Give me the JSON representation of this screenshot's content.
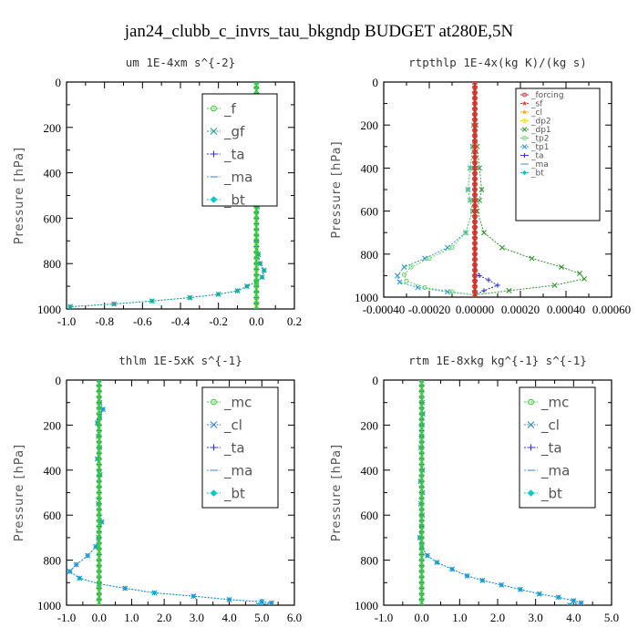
{
  "figure": {
    "title": "jan24_clubb_c_invrs_tau_bkgndp  BUDGET at280E,5N"
  },
  "chart_data": [
    {
      "type": "line",
      "title": "um  1E-4xm s^{-2}",
      "ylabel": "Pressure [hPa]",
      "xlim": [
        -1.0,
        0.2
      ],
      "ylim": [
        1000,
        0
      ],
      "xticks": [
        "-1.0",
        "-0.8",
        "-0.6",
        "-0.4",
        "-0.2",
        "0.0",
        "0.2"
      ],
      "xtick_values": [
        -1.0,
        -0.8,
        -0.6,
        -0.4,
        -0.2,
        0.0,
        0.2
      ],
      "yticks": [
        "0",
        "200",
        "400",
        "600",
        "800",
        "1000"
      ],
      "ytick_values": [
        0,
        200,
        400,
        600,
        800,
        1000
      ],
      "legend": "top-right",
      "legend_size": "large",
      "series": [
        {
          "name": "_f",
          "color": "#33cc33",
          "marker": "circle",
          "x": [
            0.0,
            0.0,
            0.0,
            0.0,
            0.0,
            0.0,
            0.0,
            0.0,
            0.0,
            0.0,
            0.0
          ],
          "y": [
            0,
            100,
            200,
            300,
            400,
            500,
            600,
            700,
            800,
            900,
            1000
          ]
        },
        {
          "name": "_gf",
          "color": "#2a9d8f",
          "marker": "x",
          "x": [
            0.0,
            0.005,
            0.03,
            0.01,
            0.005,
            0.01,
            0.005,
            0.0,
            0.01,
            0.02,
            0.04,
            0.03,
            0.0,
            -0.05,
            -0.1,
            -0.2,
            -0.35,
            -0.55,
            -0.75,
            -0.98
          ],
          "y": [
            0,
            100,
            130,
            160,
            250,
            400,
            550,
            700,
            760,
            800,
            830,
            860,
            880,
            900,
            920,
            935,
            950,
            965,
            978,
            990
          ]
        },
        {
          "name": "_ta",
          "color": "#3333cc",
          "marker": "plus",
          "x": [
            0.0,
            0.0,
            0.0,
            0.0,
            0.0,
            0.0,
            0.0
          ],
          "y": [
            0,
            200,
            400,
            600,
            800,
            900,
            1000
          ]
        },
        {
          "name": "_ma",
          "color": "#6699cc",
          "marker": "dash",
          "x": [
            0.0,
            0.0,
            0.0,
            0.0,
            0.0,
            0.0,
            0.0
          ],
          "y": [
            0,
            200,
            400,
            600,
            800,
            900,
            1000
          ]
        },
        {
          "name": "_bt",
          "color": "#00cccc",
          "marker": "diamond",
          "x": [
            0.0,
            0.005,
            0.03,
            0.01,
            0.005,
            0.01,
            0.005,
            0.0,
            0.01,
            0.02,
            0.04,
            0.03,
            0.0,
            -0.05,
            -0.1,
            -0.2,
            -0.35,
            -0.55,
            -0.75,
            -0.98
          ],
          "y": [
            0,
            100,
            130,
            160,
            250,
            400,
            550,
            700,
            760,
            800,
            830,
            860,
            880,
            900,
            920,
            935,
            950,
            965,
            978,
            990
          ]
        }
      ]
    },
    {
      "type": "line",
      "title": "rtpthlp  1E-4x(kg K)/(kg s)",
      "ylabel": "Pressure [hPa]",
      "xlim": [
        -0.0004,
        0.0006
      ],
      "ylim": [
        1000,
        0
      ],
      "xticks": [
        "-0.00040",
        "-0.00020",
        "0.00000",
        "0.00020",
        "0.00040",
        "0.00060"
      ],
      "xtick_values": [
        -0.0004,
        -0.0002,
        0.0,
        0.0002,
        0.0004,
        0.0006
      ],
      "yticks": [
        "0",
        "200",
        "400",
        "600",
        "800",
        "1000"
      ],
      "ytick_values": [
        0,
        200,
        400,
        600,
        800,
        1000
      ],
      "legend": "top-right",
      "legend_size": "small",
      "series": [
        {
          "name": "_forcing",
          "color": "#cc3333",
          "marker": "circle",
          "x": [
            0.0,
            0.0,
            0.0,
            0.0,
            0.0,
            0.0,
            0.0,
            0.0,
            0.0,
            0.0,
            0.0
          ],
          "y": [
            0,
            100,
            200,
            300,
            400,
            500,
            600,
            700,
            800,
            900,
            1000
          ]
        },
        {
          "name": "_sf",
          "color": "#ff3333",
          "marker": "star",
          "x": [
            0.0,
            0.0,
            0.0,
            0.0,
            0.0,
            0.0,
            0.0,
            0.0,
            0.0,
            0.0,
            0.0
          ],
          "y": [
            0,
            100,
            200,
            300,
            400,
            500,
            600,
            700,
            800,
            900,
            1000
          ]
        },
        {
          "name": "_cl",
          "color": "#ffaa00",
          "marker": "star",
          "x": [
            0.0,
            0.0,
            0.0,
            0.0,
            0.0,
            0.0,
            0.0
          ],
          "y": [
            0,
            200,
            400,
            600,
            800,
            900,
            1000
          ]
        },
        {
          "name": "_dp2",
          "color": "#ffcc33",
          "marker": "circle",
          "x": [
            0.0,
            0.0,
            0.0,
            0.0,
            0.0,
            0.0,
            0.0
          ],
          "y": [
            0,
            200,
            400,
            600,
            800,
            900,
            1000
          ]
        },
        {
          "name": "_dp1",
          "color": "#339933",
          "marker": "x",
          "x": [
            0.0,
            5e-06,
            1e-05,
            2e-05,
            3e-05,
            2e-05,
            1e-05,
            4e-05,
            0.00012,
            0.00025,
            0.00038,
            0.00046,
            0.00048,
            0.00035,
            0.00015,
            0.0
          ],
          "y": [
            0,
            200,
            300,
            400,
            500,
            550,
            600,
            700,
            770,
            820,
            860,
            890,
            915,
            945,
            970,
            990
          ]
        },
        {
          "name": "_tp2",
          "color": "#66dd66",
          "marker": "circle",
          "x": [
            0.0,
            -5e-06,
            -1e-05,
            -2e-05,
            -3e-05,
            -2e-05,
            -1e-05,
            -4e-05,
            -0.0001,
            -0.0002,
            -0.00028,
            -0.00031,
            -0.0003,
            -0.00022,
            -0.0001,
            0.0
          ],
          "y": [
            0,
            200,
            300,
            400,
            500,
            550,
            600,
            700,
            770,
            820,
            860,
            895,
            925,
            955,
            975,
            990
          ]
        },
        {
          "name": "_tp1",
          "color": "#3399cc",
          "marker": "x",
          "x": [
            0.0,
            -5e-06,
            -1e-05,
            -2e-05,
            -3e-05,
            -2e-05,
            -1e-05,
            -4e-05,
            -0.00012,
            -0.00022,
            -0.00031,
            -0.00034,
            -0.00033,
            -0.00025,
            -0.00012,
            0.0
          ],
          "y": [
            0,
            200,
            300,
            400,
            500,
            550,
            600,
            700,
            770,
            820,
            860,
            900,
            930,
            955,
            975,
            990
          ]
        },
        {
          "name": "_ta",
          "color": "#3333cc",
          "marker": "plus",
          "x": [
            0.0,
            0.0,
            0.0,
            0.0,
            2e-05,
            6e-05,
            0.0001,
            4e-05,
            0.0
          ],
          "y": [
            0,
            400,
            700,
            850,
            900,
            920,
            945,
            970,
            990
          ]
        },
        {
          "name": "_ma",
          "color": "#6699cc",
          "marker": "dash",
          "x": [
            0.0,
            0.0,
            0.0,
            0.0,
            0.0,
            0.0,
            0.0
          ],
          "y": [
            0,
            200,
            400,
            600,
            800,
            900,
            1000
          ]
        },
        {
          "name": "_bt",
          "color": "#00cccc",
          "marker": "diamond",
          "x": [
            0.0,
            0.0,
            0.0,
            0.0,
            0.0,
            0.0,
            0.0
          ],
          "y": [
            0,
            200,
            400,
            600,
            800,
            900,
            1000
          ]
        }
      ]
    },
    {
      "type": "line",
      "title": "thlm  1E-5xK s^{-1}",
      "ylabel": "Pressure [hPa]",
      "xlim": [
        -1.0,
        6.0
      ],
      "ylim": [
        1000,
        0
      ],
      "xticks": [
        "-1.0",
        "0.0",
        "1.0",
        "2.0",
        "3.0",
        "4.0",
        "5.0",
        "6.0"
      ],
      "xtick_values": [
        -1.0,
        0.0,
        1.0,
        2.0,
        3.0,
        4.0,
        5.0,
        6.0
      ],
      "yticks": [
        "0",
        "200",
        "400",
        "600",
        "800",
        "1000"
      ],
      "ytick_values": [
        0,
        200,
        400,
        600,
        800,
        1000
      ],
      "legend": "top-right",
      "legend_size": "large",
      "series": [
        {
          "name": "_mc",
          "color": "#33cc33",
          "marker": "circle",
          "x": [
            0.0,
            0.0,
            0.0,
            0.0,
            0.0,
            0.0,
            0.0,
            0.0,
            0.0,
            0.0,
            0.0
          ],
          "y": [
            0,
            100,
            200,
            300,
            400,
            500,
            600,
            700,
            800,
            900,
            1000
          ]
        },
        {
          "name": "_cl",
          "color": "#3388dd",
          "marker": "x",
          "x": [
            0.0,
            0.02,
            0.12,
            0.02,
            -0.05,
            -0.02,
            0.02,
            -0.05,
            0.03,
            -0.02,
            0.08,
            -0.02,
            -0.1,
            -0.35,
            -0.7,
            -0.9,
            -0.6,
            0.0,
            0.8,
            1.7,
            2.9,
            4.0,
            5.0,
            5.3,
            4.9
          ],
          "y": [
            0,
            100,
            130,
            160,
            190,
            250,
            300,
            350,
            420,
            550,
            630,
            700,
            740,
            780,
            820,
            850,
            880,
            905,
            925,
            945,
            960,
            975,
            985,
            990,
            1000
          ]
        },
        {
          "name": "_ta",
          "color": "#3333cc",
          "marker": "plus",
          "x": [
            0.0,
            0.0,
            0.0,
            0.0,
            0.0,
            0.0,
            0.0
          ],
          "y": [
            0,
            200,
            400,
            600,
            800,
            900,
            1000
          ]
        },
        {
          "name": "_ma",
          "color": "#6699cc",
          "marker": "dash",
          "x": [
            0.0,
            0.0,
            0.0,
            0.0,
            0.0,
            0.0,
            0.0
          ],
          "y": [
            0,
            200,
            400,
            600,
            800,
            900,
            1000
          ]
        },
        {
          "name": "_bt",
          "color": "#00cccc",
          "marker": "diamond",
          "x": [
            0.0,
            0.02,
            0.12,
            0.02,
            -0.05,
            -0.02,
            0.02,
            -0.05,
            0.03,
            -0.02,
            0.08,
            -0.02,
            -0.1,
            -0.35,
            -0.7,
            -0.9,
            -0.6,
            0.0,
            0.8,
            1.7,
            2.9,
            4.0,
            5.0,
            5.3,
            4.9
          ],
          "y": [
            0,
            100,
            130,
            160,
            190,
            250,
            300,
            350,
            420,
            550,
            630,
            700,
            740,
            780,
            820,
            850,
            880,
            905,
            925,
            945,
            960,
            975,
            985,
            990,
            1000
          ]
        }
      ]
    },
    {
      "type": "line",
      "title": "rtm  1E-8xkg kg^{-1} s^{-1}",
      "ylabel": "Pressure [hPa]",
      "xlim": [
        -1.0,
        5.0
      ],
      "ylim": [
        1000,
        0
      ],
      "xticks": [
        "-1.0",
        "0.0",
        "1.0",
        "2.0",
        "3.0",
        "4.0",
        "5.0"
      ],
      "xtick_values": [
        -1.0,
        0.0,
        1.0,
        2.0,
        3.0,
        4.0,
        5.0
      ],
      "yticks": [
        "0",
        "200",
        "400",
        "600",
        "800",
        "1000"
      ],
      "ytick_values": [
        0,
        200,
        400,
        600,
        800,
        1000
      ],
      "legend": "top-right",
      "legend_size": "large",
      "series": [
        {
          "name": "_mc",
          "color": "#33cc33",
          "marker": "circle",
          "x": [
            0.0,
            0.0,
            0.0,
            0.0,
            0.0,
            0.0,
            0.0,
            0.0,
            0.0,
            0.0,
            0.0
          ],
          "y": [
            0,
            100,
            200,
            300,
            400,
            500,
            600,
            700,
            800,
            900,
            1000
          ]
        },
        {
          "name": "_cl",
          "color": "#3388dd",
          "marker": "x",
          "x": [
            0.0,
            0.01,
            0.03,
            0.01,
            0.0,
            -0.02,
            0.02,
            -0.03,
            0.02,
            -0.02,
            0.01,
            0.0,
            -0.05,
            0.0,
            0.15,
            0.4,
            0.8,
            1.2,
            1.6,
            2.1,
            2.6,
            3.1,
            3.6,
            4.0,
            4.2,
            3.9
          ],
          "y": [
            0,
            100,
            150,
            200,
            250,
            300,
            400,
            450,
            500,
            550,
            600,
            650,
            700,
            740,
            780,
            810,
            840,
            870,
            890,
            910,
            930,
            950,
            965,
            980,
            990,
            1000
          ]
        },
        {
          "name": "_ta",
          "color": "#3333cc",
          "marker": "plus",
          "x": [
            0.0,
            0.0,
            0.0,
            0.0,
            0.0,
            0.0,
            0.0
          ],
          "y": [
            0,
            200,
            400,
            600,
            800,
            900,
            1000
          ]
        },
        {
          "name": "_ma",
          "color": "#6699cc",
          "marker": "dash",
          "x": [
            0.0,
            0.0,
            0.0,
            0.0,
            0.0,
            0.0,
            0.0
          ],
          "y": [
            0,
            200,
            400,
            600,
            800,
            900,
            1000
          ]
        },
        {
          "name": "_bt",
          "color": "#00cccc",
          "marker": "diamond",
          "x": [
            0.0,
            0.01,
            0.03,
            0.01,
            0.0,
            -0.02,
            0.02,
            -0.03,
            0.02,
            -0.02,
            0.01,
            0.0,
            -0.05,
            0.0,
            0.15,
            0.4,
            0.8,
            1.2,
            1.6,
            2.1,
            2.6,
            3.1,
            3.6,
            4.0,
            4.2,
            3.9
          ],
          "y": [
            0,
            100,
            150,
            200,
            250,
            300,
            400,
            450,
            500,
            550,
            600,
            650,
            700,
            740,
            780,
            810,
            840,
            870,
            890,
            910,
            930,
            950,
            965,
            980,
            990,
            1000
          ]
        }
      ]
    }
  ]
}
